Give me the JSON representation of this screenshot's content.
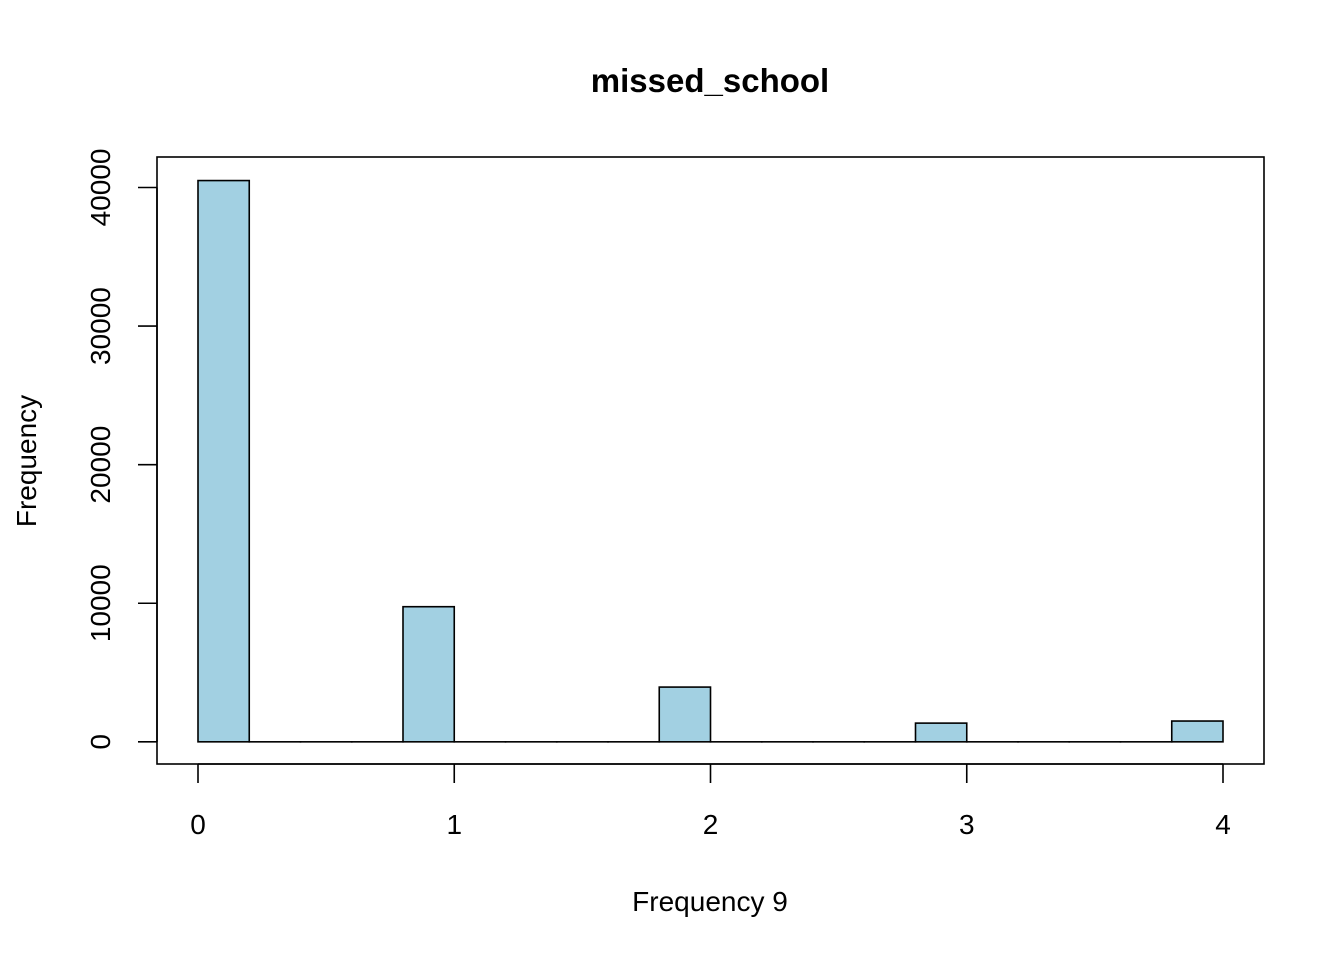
{
  "chart_data": {
    "type": "bar",
    "title": "missed_school",
    "xlabel": "Frequency 9",
    "ylabel": "Frequency",
    "bar_color": "#A2D0E2",
    "bin_width": 0.2,
    "bins": [
      {
        "start": 0.0,
        "end": 0.2,
        "value": 40500
      },
      {
        "start": 0.2,
        "end": 0.4,
        "value": 0
      },
      {
        "start": 0.4,
        "end": 0.6,
        "value": 0
      },
      {
        "start": 0.6,
        "end": 0.8,
        "value": 0
      },
      {
        "start": 0.8,
        "end": 1.0,
        "value": 9750
      },
      {
        "start": 1.0,
        "end": 1.2,
        "value": 0
      },
      {
        "start": 1.2,
        "end": 1.4,
        "value": 0
      },
      {
        "start": 1.4,
        "end": 1.6,
        "value": 0
      },
      {
        "start": 1.6,
        "end": 1.8,
        "value": 0
      },
      {
        "start": 1.8,
        "end": 2.0,
        "value": 3950
      },
      {
        "start": 2.0,
        "end": 2.2,
        "value": 0
      },
      {
        "start": 2.2,
        "end": 2.4,
        "value": 0
      },
      {
        "start": 2.4,
        "end": 2.6,
        "value": 0
      },
      {
        "start": 2.6,
        "end": 2.8,
        "value": 0
      },
      {
        "start": 2.8,
        "end": 3.0,
        "value": 1350
      },
      {
        "start": 3.0,
        "end": 3.2,
        "value": 0
      },
      {
        "start": 3.2,
        "end": 3.4,
        "value": 0
      },
      {
        "start": 3.4,
        "end": 3.6,
        "value": 0
      },
      {
        "start": 3.6,
        "end": 3.8,
        "value": 0
      },
      {
        "start": 3.8,
        "end": 4.0,
        "value": 1500
      }
    ],
    "xlim": [
      -0.16,
      4.16
    ],
    "ylim": [
      -1600,
      42200
    ],
    "x_ticks": [
      0,
      1,
      2,
      3,
      4
    ],
    "x_tick_labels": [
      "0",
      "1",
      "2",
      "3",
      "4"
    ],
    "y_ticks": [
      0,
      10000,
      20000,
      30000,
      40000
    ],
    "y_tick_labels": [
      "0",
      "10000",
      "20000",
      "30000",
      "40000"
    ],
    "grid": false,
    "legend": "none"
  }
}
